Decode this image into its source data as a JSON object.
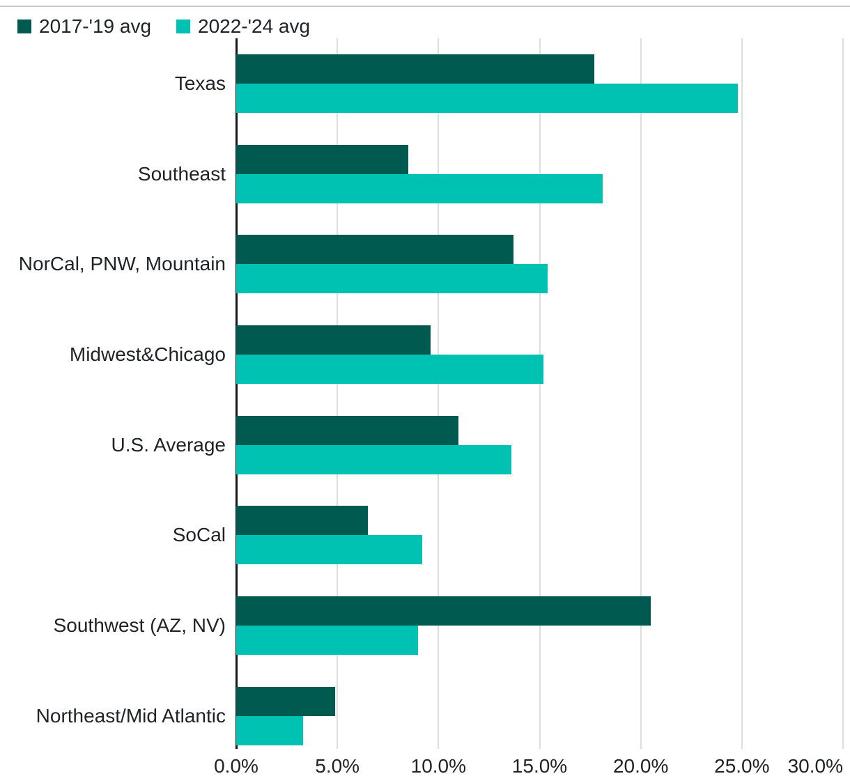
{
  "legend": {
    "items": [
      {
        "label": "2017-'19 avg",
        "color": "#005A50"
      },
      {
        "label": "2022-'24 avg",
        "color": "#00C2B2"
      }
    ]
  },
  "colors": {
    "series_dark": "#005A50",
    "series_teal": "#00C2B2",
    "gridline": "#DCDEE1",
    "axis_line": "#15181A",
    "top_rule": "#C8C8C8",
    "text": "#1F2328"
  },
  "chart_data": {
    "type": "bar",
    "orientation": "horizontal",
    "title": "",
    "xlabel": "",
    "ylabel": "",
    "grid": true,
    "legend_position": "top-left",
    "categories": [
      "Texas",
      "Southeast",
      "NorCal, PNW, Mountain",
      "Midwest&Chicago",
      "U.S. Average",
      "SoCal",
      "Southwest (AZ, NV)",
      "Northeast/Mid Atlantic"
    ],
    "series": [
      {
        "name": "2017-'19 avg",
        "color": "#005A50",
        "values": [
          17.7,
          8.5,
          13.7,
          9.6,
          11.0,
          6.5,
          20.5,
          4.9
        ]
      },
      {
        "name": "2022-'24 avg",
        "color": "#00C2B2",
        "values": [
          24.8,
          18.1,
          15.4,
          15.2,
          13.6,
          9.2,
          9.0,
          3.3
        ]
      }
    ],
    "x_axis": {
      "min": 0,
      "max": 30,
      "tick_step": 5,
      "ticks": [
        "0.0%",
        "5.0%",
        "10.0%",
        "15.0%",
        "20.0%",
        "25.0%",
        "30.0%"
      ],
      "unit": "%"
    }
  }
}
